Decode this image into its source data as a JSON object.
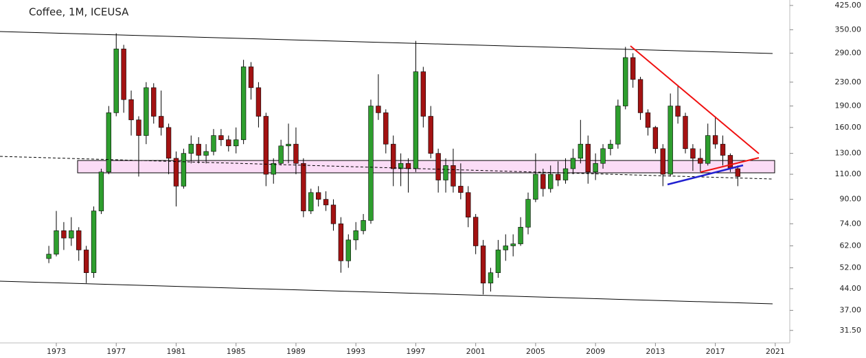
{
  "chart_data": {
    "type": "candlestick",
    "title": "Coffee, 1M, ICEUSA",
    "log_scale": true,
    "up_color": "#2e9e2e",
    "down_color": "#a31212",
    "xlim": [
      1969.24,
      2021.97
    ],
    "xticks": [
      1973,
      1977,
      1981,
      1985,
      1989,
      1993,
      1997,
      2001,
      2005,
      2009,
      2013,
      2017,
      2021
    ],
    "ylim": [
      28.5,
      444
    ],
    "yticks": [
      {
        "value": 31.5,
        "label": "31.50"
      },
      {
        "value": 37,
        "label": "37.00"
      },
      {
        "value": 44,
        "label": "44.00"
      },
      {
        "value": 52,
        "label": "52.00"
      },
      {
        "value": 62,
        "label": "62.00"
      },
      {
        "value": 74,
        "label": "74.00"
      },
      {
        "value": 90,
        "label": "90.00"
      },
      {
        "value": 110,
        "label": "110.00"
      },
      {
        "value": 130,
        "label": "130.00"
      },
      {
        "value": 160,
        "label": "160.00"
      },
      {
        "value": 190,
        "label": "190.00"
      },
      {
        "value": 230,
        "label": "230.00"
      },
      {
        "value": 290,
        "label": "290.00"
      },
      {
        "value": 350,
        "label": "350.00"
      },
      {
        "value": 425,
        "label": "425.00"
      }
    ],
    "x": [
      1972.5,
      1973,
      1973.5,
      1974,
      1974.5,
      1975,
      1975.5,
      1976,
      1976.5,
      1977,
      1977.5,
      1978,
      1978.5,
      1979,
      1979.5,
      1980,
      1980.5,
      1981,
      1981.5,
      1982,
      1982.5,
      1983,
      1983.5,
      1984,
      1984.5,
      1985,
      1985.5,
      1986,
      1986.5,
      1987,
      1987.5,
      1988,
      1988.5,
      1989,
      1989.5,
      1990,
      1990.5,
      1991,
      1991.5,
      1992,
      1992.5,
      1993,
      1993.5,
      1994,
      1994.5,
      1995,
      1995.5,
      1996,
      1996.5,
      1997,
      1997.5,
      1998,
      1998.5,
      1999,
      1999.5,
      2000,
      2000.5,
      2001,
      2001.5,
      2002,
      2002.5,
      2003,
      2003.5,
      2004,
      2004.5,
      2005,
      2005.5,
      2006,
      2006.5,
      2007,
      2007.5,
      2008,
      2008.5,
      2009,
      2009.5,
      2010,
      2010.5,
      2011,
      2011.5,
      2012,
      2012.5,
      2013,
      2013.5,
      2014,
      2014.5,
      2015,
      2015.5,
      2016,
      2016.5,
      2017,
      2017.5,
      2018,
      2018.5
    ],
    "open": [
      56,
      58,
      70,
      66,
      70,
      60,
      50,
      82,
      112,
      180,
      300,
      200,
      170,
      150,
      220,
      175,
      160,
      125,
      100,
      130,
      140,
      128,
      132,
      150,
      145,
      138,
      145,
      260,
      220,
      175,
      110,
      120,
      138,
      140,
      120,
      82,
      95,
      90,
      86,
      74,
      55,
      65,
      70,
      76,
      190,
      180,
      140,
      115,
      120,
      115,
      250,
      175,
      130,
      105,
      118,
      100,
      95,
      78,
      62,
      46,
      50,
      60,
      62,
      63,
      72,
      90,
      110,
      98,
      110,
      105,
      115,
      125,
      140,
      112,
      120,
      135,
      140,
      190,
      280,
      235,
      180,
      160,
      135,
      110,
      190,
      175,
      135,
      125,
      120,
      150,
      140,
      128,
      115
    ],
    "high": [
      62,
      82,
      75,
      78,
      72,
      62,
      85,
      115,
      190,
      340,
      310,
      215,
      175,
      230,
      228,
      215,
      165,
      132,
      135,
      150,
      148,
      140,
      158,
      158,
      150,
      160,
      275,
      270,
      230,
      180,
      125,
      145,
      165,
      160,
      125,
      98,
      100,
      96,
      90,
      78,
      68,
      75,
      80,
      200,
      245,
      185,
      150,
      130,
      125,
      320,
      260,
      190,
      135,
      125,
      135,
      120,
      100,
      80,
      65,
      52,
      65,
      68,
      68,
      78,
      95,
      130,
      115,
      118,
      122,
      125,
      135,
      170,
      150,
      130,
      140,
      145,
      200,
      305,
      290,
      240,
      185,
      162,
      140,
      210,
      225,
      180,
      140,
      135,
      165,
      175,
      150,
      130,
      118
    ],
    "low": [
      54,
      57,
      60,
      62,
      55,
      46,
      48,
      80,
      110,
      175,
      180,
      150,
      108,
      140,
      165,
      150,
      110,
      85,
      98,
      120,
      120,
      120,
      128,
      138,
      132,
      130,
      140,
      200,
      160,
      100,
      102,
      118,
      120,
      110,
      78,
      80,
      85,
      82,
      70,
      50,
      52,
      60,
      68,
      74,
      170,
      130,
      100,
      100,
      95,
      112,
      160,
      125,
      95,
      95,
      95,
      90,
      72,
      58,
      42,
      43,
      48,
      55,
      57,
      62,
      68,
      88,
      92,
      95,
      100,
      102,
      110,
      120,
      102,
      105,
      115,
      128,
      135,
      185,
      220,
      170,
      150,
      130,
      100,
      108,
      165,
      130,
      113,
      112,
      118,
      135,
      118,
      112,
      100
    ],
    "close": [
      58,
      70,
      66,
      70,
      60,
      50,
      82,
      112,
      180,
      300,
      200,
      170,
      150,
      220,
      175,
      160,
      125,
      100,
      130,
      140,
      128,
      132,
      150,
      145,
      138,
      145,
      260,
      220,
      175,
      110,
      120,
      138,
      140,
      120,
      82,
      95,
      90,
      86,
      74,
      55,
      65,
      70,
      76,
      190,
      180,
      140,
      115,
      120,
      115,
      250,
      175,
      130,
      105,
      118,
      100,
      95,
      78,
      62,
      46,
      50,
      60,
      62,
      63,
      72,
      90,
      110,
      98,
      110,
      105,
      115,
      125,
      140,
      112,
      120,
      135,
      140,
      190,
      280,
      235,
      180,
      160,
      135,
      110,
      190,
      175,
      135,
      125,
      120,
      150,
      140,
      128,
      115,
      108
    ]
  }
}
